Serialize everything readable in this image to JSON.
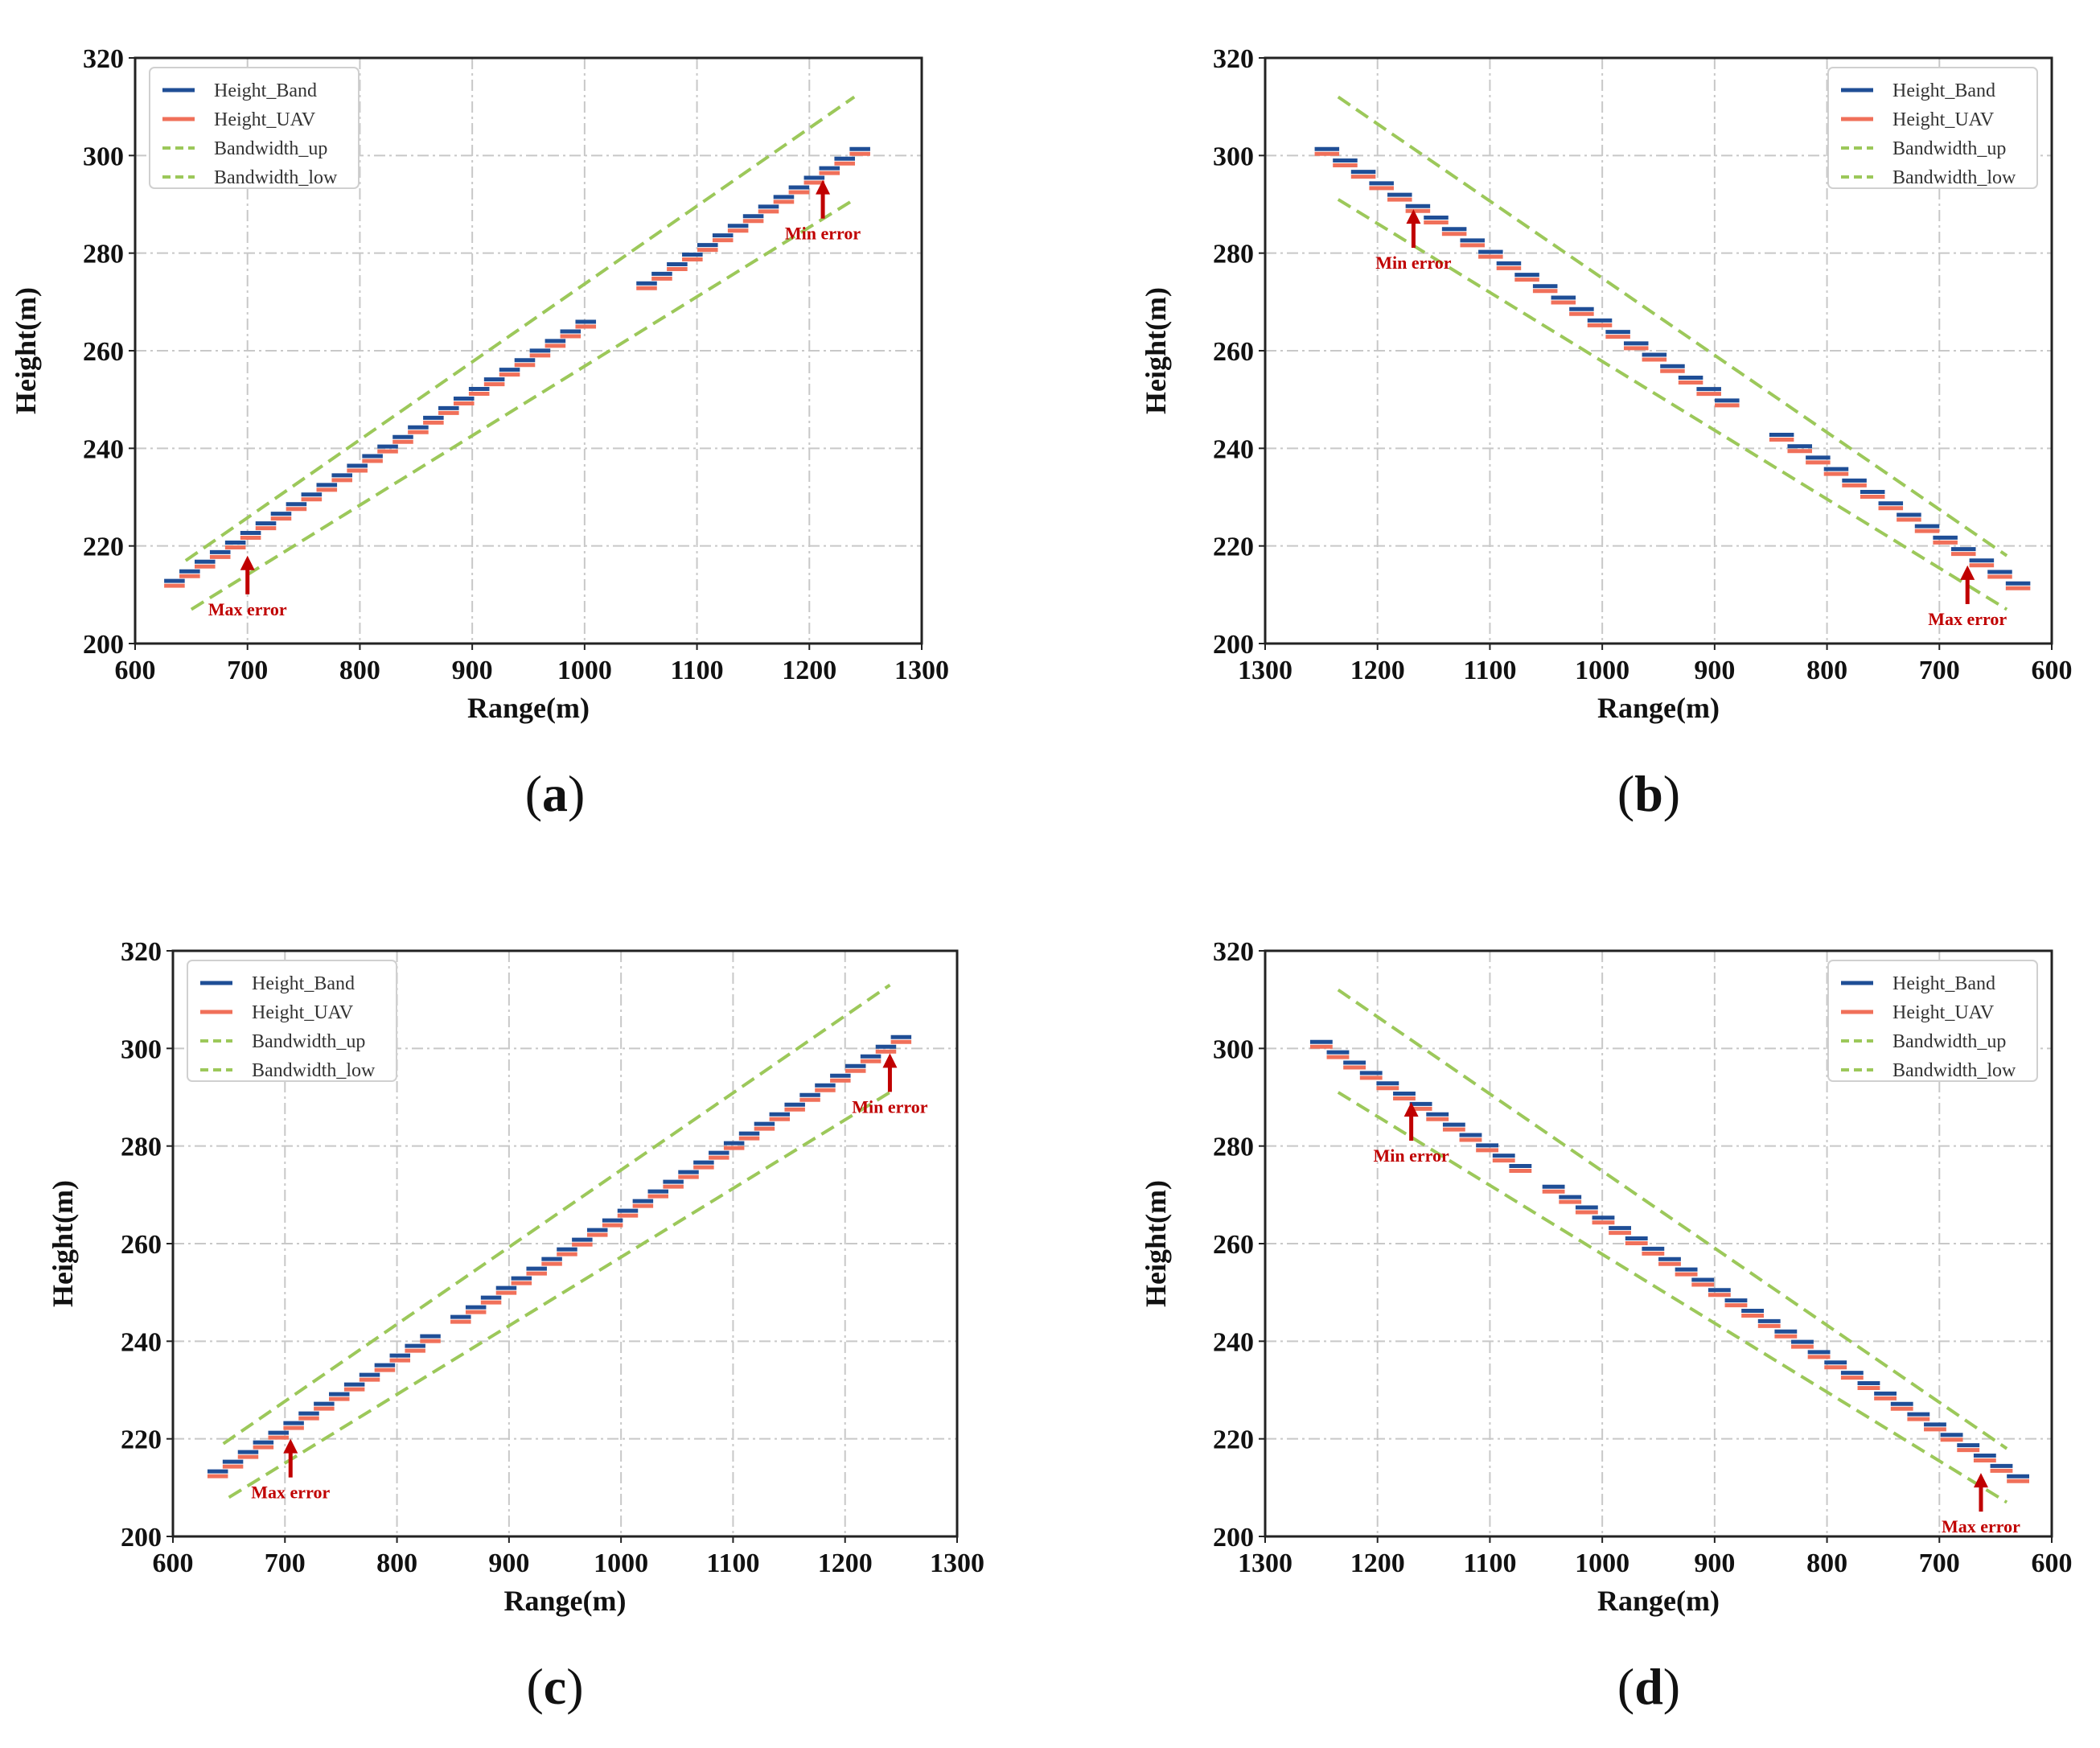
{
  "colors": {
    "band": "#1f4e96",
    "uav": "#f0705a",
    "bandwidth": "#9cc85a",
    "annotation": "#c00000",
    "grid": "#c8c8c8"
  },
  "chart_data": [
    {
      "id": "a",
      "caption": "a",
      "type": "line",
      "xlabel": "Range(m)",
      "ylabel": "Height(m)",
      "xlim": [
        600,
        1300
      ],
      "ylim": [
        200,
        320
      ],
      "x_reversed": false,
      "xticks": [
        "600",
        "700",
        "800",
        "900",
        "1000",
        "1100",
        "1200",
        "1300"
      ],
      "yticks": [
        "200",
        "220",
        "240",
        "260",
        "280",
        "300",
        "320"
      ],
      "grid": true,
      "legend_position": "top-left",
      "legend": [
        "Height_Band",
        "Height_UAV",
        "Bandwidth_up",
        "Bandwidth_low"
      ],
      "step_start": [
        635,
        212.5
      ],
      "step_end": [
        1245,
        301
      ],
      "steps": 45,
      "gap": [
        1010,
        1050
      ],
      "bandwidth_up": [
        [
          645,
          217
        ],
        [
          1240,
          312
        ]
      ],
      "bandwidth_low": [
        [
          650,
          207
        ],
        [
          1240,
          291
        ]
      ],
      "annotations": [
        {
          "text": "Max error",
          "x": 700,
          "y": 218,
          "text_side": "below"
        },
        {
          "text": "Min error",
          "x": 1212,
          "y": 295,
          "text_side": "below"
        }
      ]
    },
    {
      "id": "b",
      "caption": "b",
      "type": "line",
      "xlabel": "Range(m)",
      "ylabel": "Height(m)",
      "xlim": [
        1300,
        600
      ],
      "ylim": [
        200,
        320
      ],
      "x_reversed": true,
      "xticks": [
        "1300",
        "1200",
        "1100",
        "1000",
        "900",
        "800",
        "700",
        "600"
      ],
      "yticks": [
        "200",
        "220",
        "240",
        "260",
        "280",
        "300",
        "320"
      ],
      "grid": true,
      "legend_position": "top-right",
      "legend": [
        "Height_Band",
        "Height_UAV",
        "Bandwidth_up",
        "Bandwidth_low"
      ],
      "step_start": [
        1245,
        301
      ],
      "step_end": [
        630,
        212
      ],
      "steps": 38,
      "gap": [
        880,
        850
      ],
      "bandwidth_up": [
        [
          1235,
          312
        ],
        [
          640,
          218
        ]
      ],
      "bandwidth_low": [
        [
          1235,
          291
        ],
        [
          640,
          207
        ]
      ],
      "annotations": [
        {
          "text": "Min error",
          "x": 1168,
          "y": 289,
          "text_side": "below"
        },
        {
          "text": "Max error",
          "x": 675,
          "y": 216,
          "text_side": "below"
        }
      ]
    },
    {
      "id": "c",
      "caption": "c",
      "type": "line",
      "xlabel": "Range(m)",
      "ylabel": "Height(m)",
      "xlim": [
        600,
        1300
      ],
      "ylim": [
        200,
        320
      ],
      "x_reversed": false,
      "xticks": [
        "600",
        "700",
        "800",
        "900",
        "1000",
        "1100",
        "1200",
        "1300"
      ],
      "yticks": [
        "200",
        "220",
        "240",
        "260",
        "280",
        "300",
        "320"
      ],
      "grid": true,
      "legend_position": "top-left",
      "legend": [
        "Height_Band",
        "Height_UAV",
        "Bandwidth_up",
        "Bandwidth_low"
      ],
      "step_start": [
        640,
        213
      ],
      "step_end": [
        1250,
        302
      ],
      "steps": 45,
      "gap": [
        835,
        855
      ],
      "bandwidth_up": [
        [
          645,
          219
        ],
        [
          1240,
          313
        ]
      ],
      "bandwidth_low": [
        [
          650,
          208
        ],
        [
          1240,
          291
        ]
      ],
      "annotations": [
        {
          "text": "Max error",
          "x": 705,
          "y": 220,
          "text_side": "below"
        },
        {
          "text": "Min error",
          "x": 1240,
          "y": 299,
          "text_side": "below"
        }
      ]
    },
    {
      "id": "d",
      "caption": "d",
      "type": "line",
      "xlabel": "Range(m)",
      "ylabel": "Height(m)",
      "xlim": [
        1300,
        600
      ],
      "ylim": [
        200,
        320
      ],
      "x_reversed": true,
      "xticks": [
        "1300",
        "1200",
        "1100",
        "1000",
        "900",
        "800",
        "700",
        "600"
      ],
      "yticks": [
        "200",
        "220",
        "240",
        "260",
        "280",
        "300",
        "320"
      ],
      "grid": true,
      "legend_position": "top-right",
      "legend": [
        "Height_Band",
        "Height_UAV",
        "Bandwidth_up",
        "Bandwidth_low"
      ],
      "step_start": [
        1250,
        301
      ],
      "step_end": [
        630,
        212
      ],
      "steps": 42,
      "gap": [
        1070,
        1050
      ],
      "bandwidth_up": [
        [
          1235,
          312
        ],
        [
          640,
          218
        ]
      ],
      "bandwidth_low": [
        [
          1235,
          291
        ],
        [
          640,
          207
        ]
      ],
      "annotations": [
        {
          "text": "Min error",
          "x": 1170,
          "y": 289,
          "text_side": "below"
        },
        {
          "text": "Max error",
          "x": 663,
          "y": 213,
          "text_side": "below"
        }
      ]
    }
  ]
}
